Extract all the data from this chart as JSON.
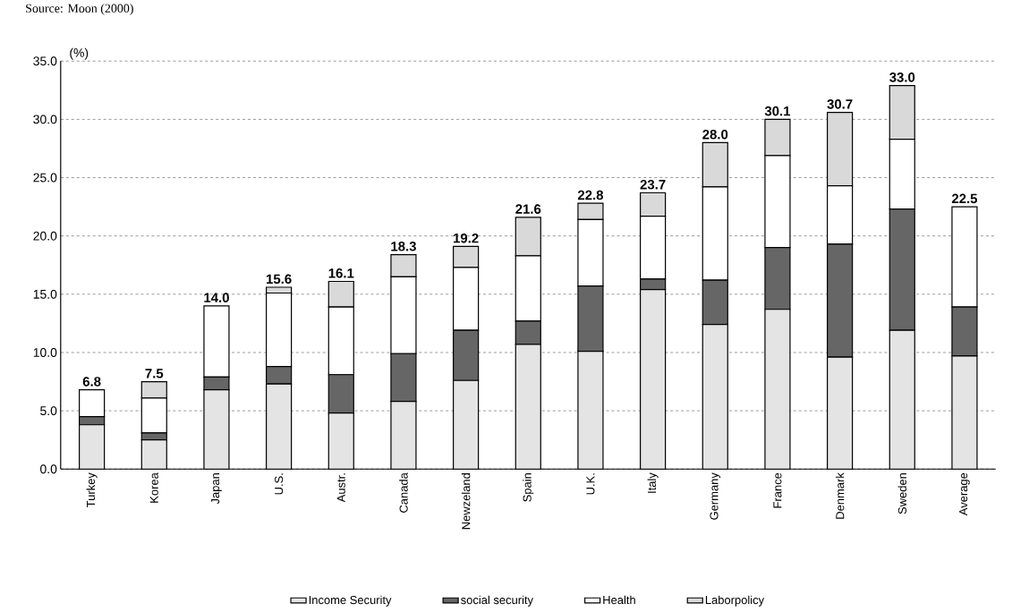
{
  "chart_data": {
    "type": "bar",
    "stacked": true,
    "ylabel": "(%)",
    "annotations": [
      "Source: Moon (2000)"
    ],
    "categories": [
      "Turkey",
      "Korea",
      "Japan",
      "U.S.",
      "Austr.",
      "Canada",
      "Newzeland",
      "Spain",
      "U.K.",
      "Italy",
      "Germany",
      "France",
      "Denmark",
      "Sweden",
      "Average"
    ],
    "series": [
      {
        "name": "Income Security",
        "color": "#e4e4e4",
        "values": [
          3.8,
          2.5,
          6.8,
          7.3,
          4.8,
          5.8,
          7.6,
          10.7,
          10.1,
          15.4,
          12.4,
          13.7,
          9.6,
          11.9,
          9.7
        ]
      },
      {
        "name": "social security",
        "color": "#666666",
        "values": [
          0.7,
          0.6,
          1.1,
          1.5,
          3.3,
          4.1,
          4.3,
          2.0,
          5.6,
          0.9,
          3.8,
          5.3,
          9.7,
          10.4,
          4.2
        ]
      },
      {
        "name": "Health",
        "color": "#ffffff",
        "values": [
          2.3,
          3.0,
          6.1,
          6.3,
          5.8,
          6.6,
          5.4,
          5.6,
          5.7,
          5.4,
          8.0,
          7.9,
          5.0,
          6.0,
          8.6
        ]
      },
      {
        "name": "Laborpolicy",
        "color": "#d9d9d9",
        "values": [
          0,
          1.4,
          0,
          0.5,
          2.2,
          1.9,
          1.8,
          3.3,
          1.4,
          2.0,
          3.8,
          3.1,
          6.3,
          4.6,
          0
        ]
      }
    ],
    "totals": [
      "6.8",
      "7.5",
      "14.0",
      "15.6",
      "16.1",
      "18.3",
      "19.2",
      "21.6",
      "22.8",
      "23.7",
      "28.0",
      "30.1",
      "30.7",
      "33.0",
      "22.5"
    ],
    "ylim": [
      0,
      35
    ],
    "yticks": [
      {
        "value": 0,
        "label": "0.0"
      },
      {
        "value": 5,
        "label": "5.0"
      },
      {
        "value": 10,
        "label": "10.0"
      },
      {
        "value": 15,
        "label": "15.0"
      },
      {
        "value": 20,
        "label": "20.0"
      },
      {
        "value": 25,
        "label": "25.0"
      },
      {
        "value": 30,
        "label": "30.0"
      },
      {
        "value": 35,
        "label": "35.0"
      }
    ],
    "grid": "y",
    "legend": "bottom"
  }
}
